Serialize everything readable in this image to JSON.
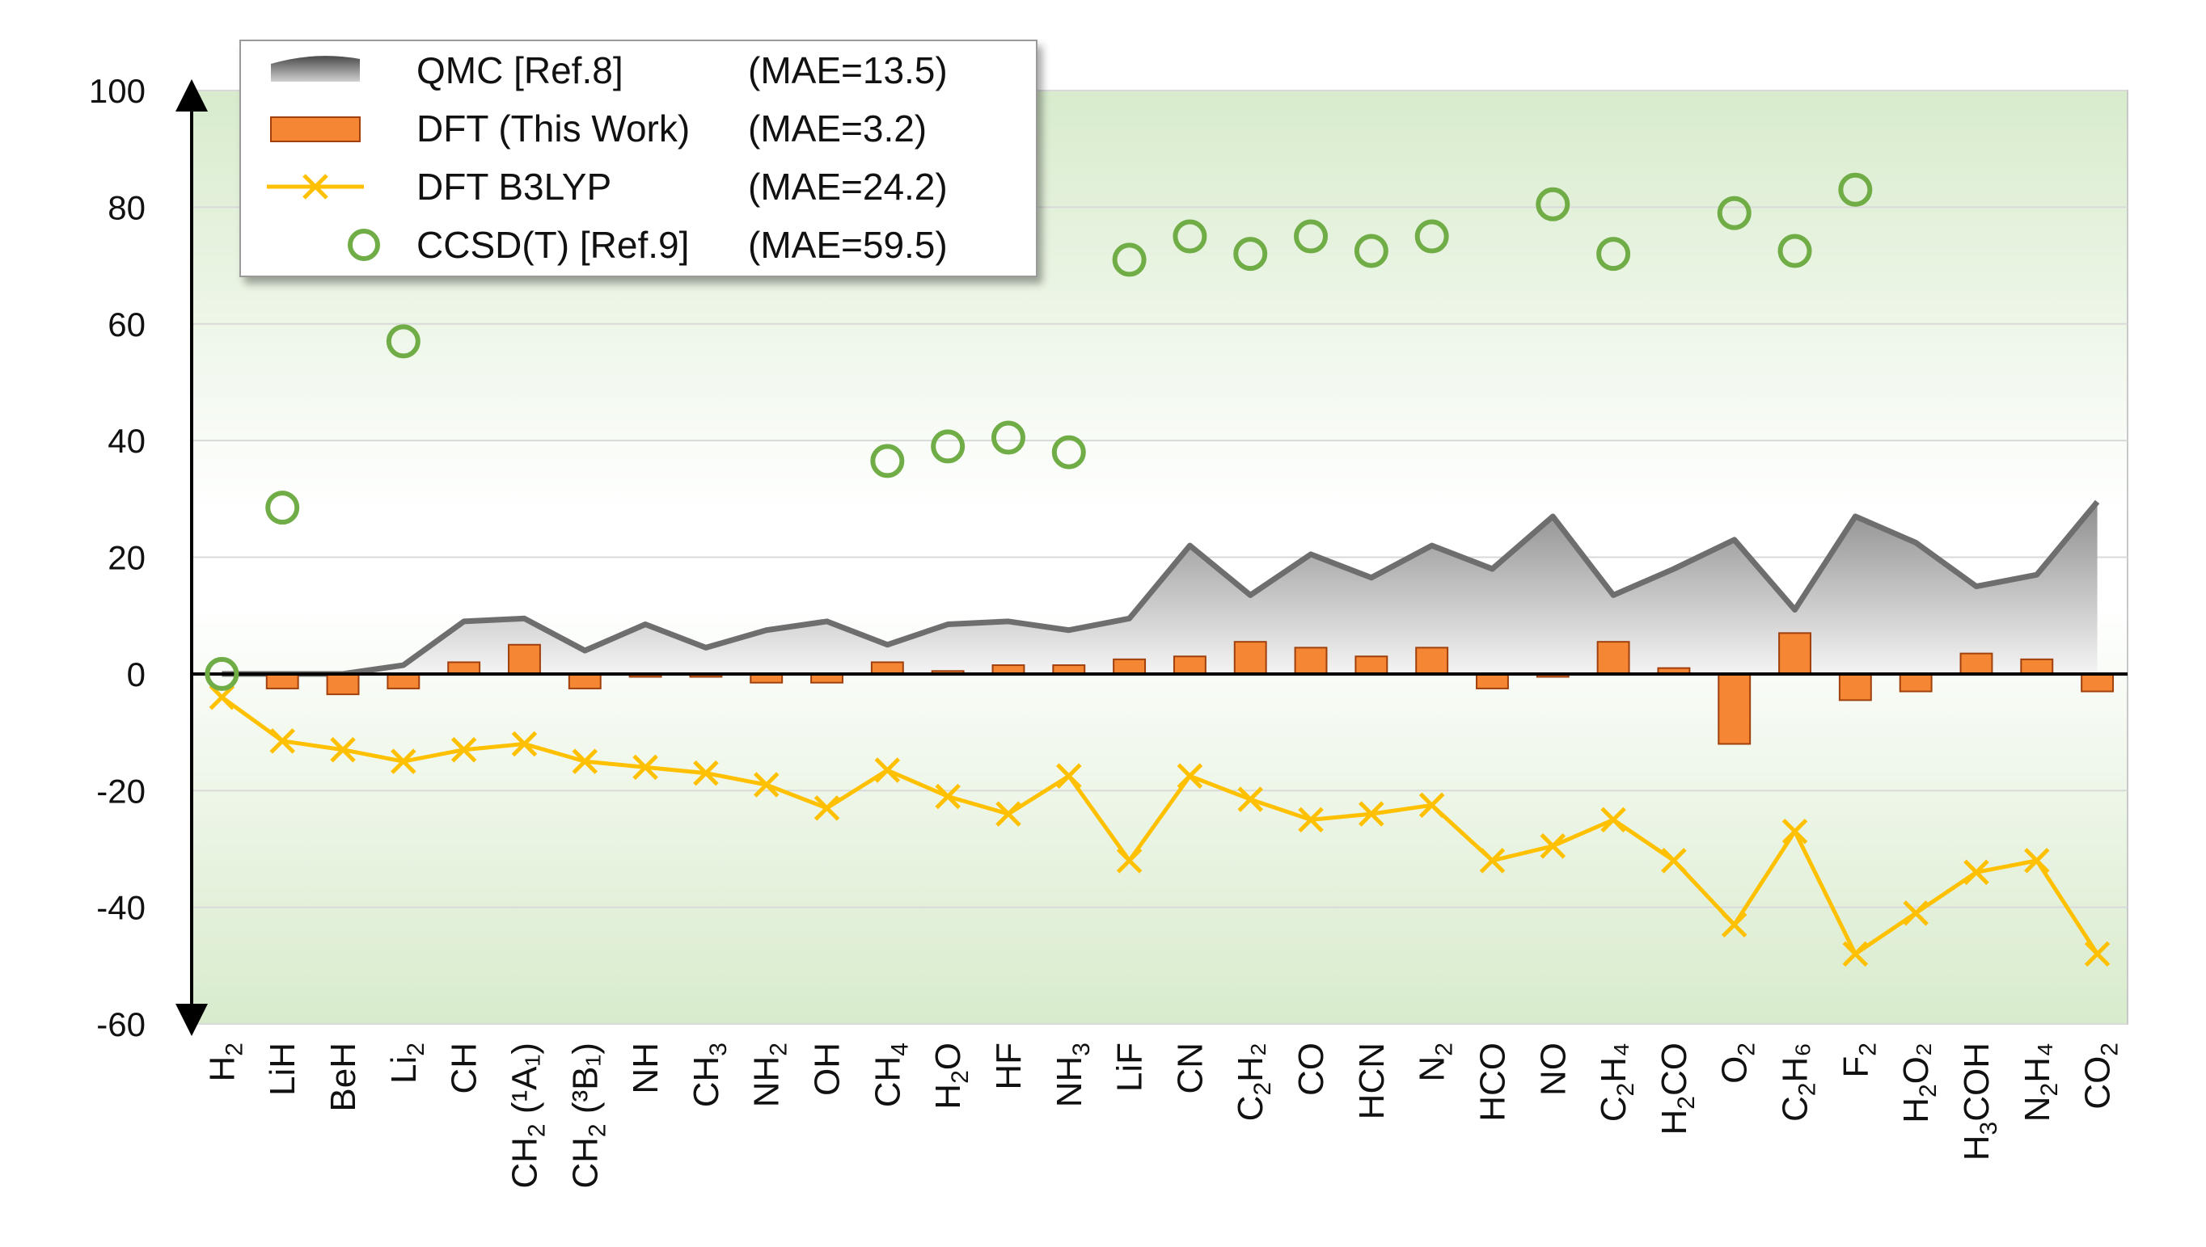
{
  "chart_data": {
    "type": "bar",
    "title": "",
    "xlabel": "",
    "ylabel": "",
    "ylim": [
      -60,
      100
    ],
    "yticks": [
      "100",
      "80",
      "60",
      "40",
      "20",
      "0",
      "-20",
      "-40",
      "-60"
    ],
    "grid": true,
    "legend_position": "top-left",
    "categories": [
      {
        "base": "H",
        "sub": "2",
        "post": ""
      },
      {
        "base": "LiH",
        "sub": "",
        "post": ""
      },
      {
        "base": "BeH",
        "sub": "",
        "post": ""
      },
      {
        "base": "Li",
        "sub": "2",
        "post": ""
      },
      {
        "base": "CH",
        "sub": "",
        "post": ""
      },
      {
        "base": "CH",
        "sub": "2",
        "post": " (¹A₁)"
      },
      {
        "base": "CH",
        "sub": "2",
        "post": " (³B₁)"
      },
      {
        "base": "NH",
        "sub": "",
        "post": ""
      },
      {
        "base": "CH",
        "sub": "3",
        "post": ""
      },
      {
        "base": "NH",
        "sub": "2",
        "post": ""
      },
      {
        "base": "OH",
        "sub": "",
        "post": ""
      },
      {
        "base": "CH",
        "sub": "4",
        "post": ""
      },
      {
        "base": "H",
        "sub": "2",
        "post": "O"
      },
      {
        "base": "HF",
        "sub": "",
        "post": ""
      },
      {
        "base": "NH",
        "sub": "3",
        "post": ""
      },
      {
        "base": "LiF",
        "sub": "",
        "post": ""
      },
      {
        "base": "CN",
        "sub": "",
        "post": ""
      },
      {
        "base": "C",
        "sub": "2",
        "post": "H₂"
      },
      {
        "base": "CO",
        "sub": "",
        "post": ""
      },
      {
        "base": "HCN",
        "sub": "",
        "post": ""
      },
      {
        "base": "N",
        "sub": "2",
        "post": ""
      },
      {
        "base": "HCO",
        "sub": "",
        "post": ""
      },
      {
        "base": "NO",
        "sub": "",
        "post": ""
      },
      {
        "base": "C",
        "sub": "2",
        "post": "H₄"
      },
      {
        "base": "H",
        "sub": "2",
        "post": "CO"
      },
      {
        "base": "O",
        "sub": "2",
        "post": ""
      },
      {
        "base": "C",
        "sub": "2",
        "post": "H₆"
      },
      {
        "base": "F",
        "sub": "2",
        "post": ""
      },
      {
        "base": "H",
        "sub": "2",
        "post": "O₂"
      },
      {
        "base": "H",
        "sub": "3",
        "post": "COH"
      },
      {
        "base": "N",
        "sub": "2",
        "post": "H₄"
      },
      {
        "base": "CO",
        "sub": "2",
        "post": ""
      }
    ],
    "series": [
      {
        "name": "QMC [Ref.8]",
        "mae": "(MAE=13.5)",
        "type": "area",
        "color": "#6e6e6e",
        "values": [
          0,
          0,
          0,
          1.5,
          9,
          9.5,
          4,
          8.5,
          4.5,
          7.5,
          9,
          5,
          8.5,
          9,
          7.5,
          9.5,
          22,
          13.5,
          20.5,
          16.5,
          22,
          18,
          27,
          13.5,
          18,
          23,
          11,
          27,
          22.5,
          15,
          17,
          29.5
        ]
      },
      {
        "name": "DFT (This Work)",
        "mae": "(MAE=3.2)",
        "type": "bar",
        "color": "#f58634",
        "values": [
          0,
          -2.5,
          -3.5,
          -2.5,
          2,
          5,
          -2.5,
          -0.5,
          -0.5,
          -1.5,
          -1.5,
          2,
          0.5,
          1.5,
          1.5,
          2.5,
          3,
          5.5,
          4.5,
          3,
          4.5,
          -2.5,
          -0.5,
          5.5,
          1,
          -12,
          7,
          -4.5,
          -3,
          3.5,
          2.5,
          -3
        ]
      },
      {
        "name": "DFT B3LYP",
        "mae": "(MAE=24.2)",
        "type": "line",
        "color": "#ffc000",
        "values": [
          -4,
          -11.5,
          -13,
          -15,
          -13,
          -12,
          -15,
          -16,
          -17,
          -19,
          -23,
          -16.5,
          -21,
          -24,
          -17.5,
          -32,
          -17.5,
          -21.5,
          -25,
          -24,
          -22.5,
          -32,
          -29.5,
          -25,
          -32,
          -43,
          -27,
          -48,
          -41,
          -34,
          -32,
          -48
        ]
      },
      {
        "name": "CCSD(T) [Ref.9]",
        "mae": "(MAE=59.5)",
        "type": "scatter",
        "color": "#70ad47",
        "values": [
          0,
          28.5,
          null,
          57,
          null,
          null,
          null,
          null,
          null,
          null,
          null,
          36.5,
          39,
          40.5,
          38,
          71,
          75,
          72,
          75,
          72.5,
          75,
          null,
          80.5,
          72,
          null,
          79,
          72.5,
          83,
          null,
          null,
          null,
          null
        ]
      }
    ]
  }
}
